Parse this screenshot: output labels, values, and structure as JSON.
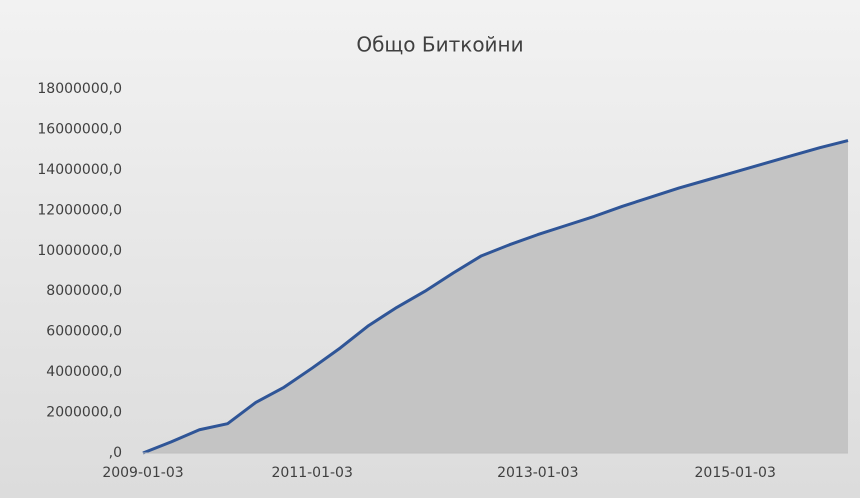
{
  "chart_data": {
    "type": "area",
    "title": "Общо Биткойни",
    "categories": [
      "2009-01-03",
      null,
      null,
      null,
      null,
      null,
      "2011-01-03",
      null,
      null,
      null,
      null,
      null,
      null,
      null,
      "2013-01-03",
      null,
      null,
      null,
      null,
      null,
      null,
      "2015-01-03",
      null,
      null,
      null,
      null
    ],
    "series": [
      {
        "name": "Общо Биткойни",
        "color": "#2f5597",
        "fill": "#c4c4c4",
        "values": [
          0,
          550000,
          1150000,
          1450000,
          2500000,
          3250000,
          4200000,
          5200000,
          6300000,
          7200000,
          8000000,
          8900000,
          9750000,
          10300000,
          10800000,
          11250000,
          11700000,
          12200000,
          12650000,
          13100000,
          13500000,
          13900000,
          14300000,
          14700000,
          15100000,
          15450000
        ]
      }
    ],
    "ylim": [
      0,
      18000000
    ],
    "yticks": [
      {
        "value": 0,
        "label": ",0"
      },
      {
        "value": 2000000,
        "label": "2000000,0"
      },
      {
        "value": 4000000,
        "label": "4000000,0"
      },
      {
        "value": 6000000,
        "label": "6000000,0"
      },
      {
        "value": 8000000,
        "label": "8000000,0"
      },
      {
        "value": 10000000,
        "label": "10000000,0"
      },
      {
        "value": 12000000,
        "label": "12000000,0"
      },
      {
        "value": 14000000,
        "label": "14000000,0"
      },
      {
        "value": 16000000,
        "label": "16000000,0"
      },
      {
        "value": 18000000,
        "label": "18000000,0"
      }
    ],
    "grid": false
  }
}
